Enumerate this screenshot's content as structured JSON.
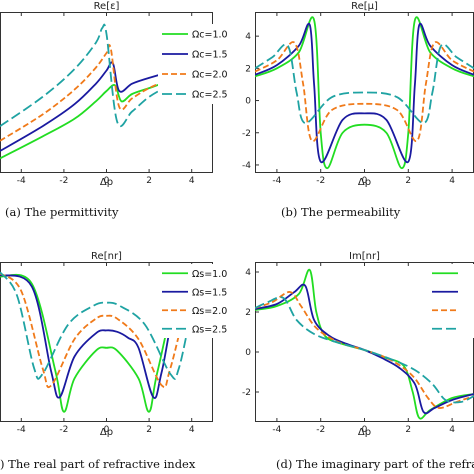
{
  "chart_data": [
    {
      "type": "line",
      "title": "Re[ε]",
      "xlabel": "Δp",
      "caption": "(a) The permittivity",
      "xlim": [
        -5,
        5
      ],
      "x_ticks": [
        "-4",
        "-2",
        "0",
        "2",
        "4"
      ],
      "y_ticks": [],
      "legend_position": "top-right",
      "series": [
        {
          "name": "Ωc=1.0",
          "color": "#22dd22",
          "dash": "solid",
          "x": [
            -5,
            -3,
            -1.5,
            -0.5,
            0,
            0.4,
            0.7,
            1.2,
            2,
            3,
            4,
            5
          ],
          "y": [
            0.05,
            0.2,
            0.32,
            0.44,
            0.51,
            0.55,
            0.44,
            0.49,
            0.53,
            0.58,
            0.62,
            0.66
          ]
        },
        {
          "name": "Ωc=1.5",
          "color": "#1a1aa0",
          "dash": "solid",
          "x": [
            -5,
            -3,
            -1.5,
            -0.5,
            0,
            0.3,
            0.6,
            1.2,
            2,
            3,
            4,
            5
          ],
          "y": [
            0.1,
            0.27,
            0.42,
            0.56,
            0.65,
            0.7,
            0.51,
            0.56,
            0.6,
            0.64,
            0.67,
            0.7
          ]
        },
        {
          "name": "Ωc=2.0",
          "color": "#f07a1a",
          "dash": "6,3",
          "x": [
            -5,
            -3,
            -1.5,
            -0.5,
            0,
            0.2,
            0.6,
            1.2,
            2,
            3,
            4,
            5
          ],
          "y": [
            0.17,
            0.35,
            0.52,
            0.67,
            0.77,
            0.8,
            0.4,
            0.46,
            0.53,
            0.59,
            0.63,
            0.67
          ]
        },
        {
          "name": "Ωc=2.5",
          "color": "#1fa3a3",
          "dash": "10,4",
          "x": [
            -5,
            -3,
            -1.5,
            -0.5,
            -0.2,
            0,
            0.5,
            1.2,
            2,
            3,
            4,
            5
          ],
          "y": [
            0.27,
            0.47,
            0.66,
            0.84,
            0.94,
            0.9,
            0.3,
            0.37,
            0.47,
            0.55,
            0.6,
            0.64
          ]
        }
      ]
    },
    {
      "type": "line",
      "title": "Re[μ]",
      "xlabel": "Δp",
      "caption": "(b) The permeability",
      "xlim": [
        -5,
        5
      ],
      "ylim": [
        -4.5,
        5.5
      ],
      "x_ticks": [
        "-4",
        "-2",
        "0",
        "2",
        "4"
      ],
      "y_ticks": [
        "4",
        "2",
        "0",
        "-2",
        "-4"
      ],
      "series": [
        {
          "name": "",
          "color": "#22dd22",
          "dash": "solid",
          "x": [
            -5,
            -4,
            -3,
            -2.3,
            -2,
            -1.7,
            -1,
            0,
            1,
            1.7,
            2,
            2.3,
            3,
            4,
            5
          ],
          "y": [
            1.5,
            2.0,
            3.0,
            5.0,
            -2,
            -4.2,
            -2,
            -1.5,
            -2,
            -4.2,
            -2,
            5.0,
            3.0,
            2.0,
            1.5
          ]
        },
        {
          "name": "",
          "color": "#1a1aa0",
          "dash": "solid",
          "x": [
            -5,
            -4,
            -3,
            -2.5,
            -2.3,
            -2,
            -1,
            0,
            1,
            2,
            2.3,
            2.5,
            3,
            4,
            5
          ],
          "y": [
            1.6,
            2.2,
            3.4,
            4.7,
            1,
            -3.8,
            -1.2,
            -0.8,
            -1.2,
            -3.8,
            1,
            4.7,
            3.4,
            2.2,
            1.6
          ]
        },
        {
          "name": "",
          "color": "#f07a1a",
          "dash": "6,3",
          "x": [
            -5,
            -4,
            -3.2,
            -2.8,
            -2.4,
            -1.5,
            0,
            1.5,
            2.4,
            2.8,
            3.2,
            4,
            5
          ],
          "y": [
            1.8,
            2.5,
            3.6,
            1,
            -2.5,
            -0.6,
            -0.2,
            -0.6,
            -2.5,
            1,
            3.6,
            2.5,
            1.8
          ]
        },
        {
          "name": "",
          "color": "#1fa3a3",
          "dash": "10,4",
          "x": [
            -5,
            -4.2,
            -3.5,
            -3.1,
            -2.7,
            -1.5,
            0,
            1.5,
            2.7,
            3.1,
            3.5,
            4.2,
            5
          ],
          "y": [
            2.0,
            2.7,
            3.4,
            0.5,
            -1.4,
            0.2,
            0.5,
            0.2,
            -1.4,
            0.5,
            3.4,
            2.7,
            2.0
          ]
        }
      ]
    },
    {
      "type": "line",
      "title": "Re[nr]",
      "xlabel": "Δp",
      "caption": ") The real part of refractive index",
      "xlim": [
        -5,
        5
      ],
      "x_ticks": [
        "-4",
        "-2",
        "0",
        "2",
        "4"
      ],
      "y_ticks": [],
      "legend_position": "top-right",
      "series": [
        {
          "name": "Ωs=1.0",
          "color": "#22dd22",
          "dash": "solid",
          "x": [
            -5,
            -3.5,
            -2.4,
            -2,
            -1.5,
            -0.5,
            0,
            0.5,
            1.5,
            2,
            2.4,
            3.5,
            5
          ],
          "y": [
            0.95,
            0.9,
            0.3,
            0.02,
            0.25,
            0.44,
            0.46,
            0.44,
            0.25,
            0.02,
            0.3,
            0.9,
            0.95
          ]
        },
        {
          "name": "Ωs=1.5",
          "color": "#1a1aa0",
          "dash": "solid",
          "x": [
            -5,
            -3.5,
            -2.6,
            -2.2,
            -1.5,
            -0.5,
            0,
            0.5,
            1,
            1.5,
            2.2,
            2.6,
            3.5,
            5
          ],
          "y": [
            0.96,
            0.88,
            0.3,
            0.12,
            0.4,
            0.56,
            0.58,
            0.57,
            0.53,
            0.46,
            0.12,
            0.3,
            0.88,
            0.96
          ]
        },
        {
          "name": "Ωs=2.0",
          "color": "#f07a1a",
          "dash": "6,3",
          "x": [
            -5,
            -4,
            -3,
            -2.6,
            -1.5,
            -0.5,
            0,
            0.5,
            1.5,
            2.6,
            3,
            4,
            5
          ],
          "y": [
            0.97,
            0.85,
            0.32,
            0.2,
            0.52,
            0.66,
            0.68,
            0.66,
            0.52,
            0.2,
            0.32,
            0.85,
            0.97
          ]
        },
        {
          "name": "Ωs=2.5",
          "color": "#1fa3a3",
          "dash": "10,4",
          "x": [
            -5,
            -4.2,
            -3.4,
            -3,
            -1.8,
            -0.6,
            0,
            0.6,
            1.8,
            3,
            3.4,
            4.2,
            5
          ],
          "y": [
            0.98,
            0.82,
            0.32,
            0.28,
            0.62,
            0.75,
            0.77,
            0.75,
            0.62,
            0.28,
            0.32,
            0.82,
            0.98
          ]
        }
      ]
    },
    {
      "type": "line",
      "title": "Im[nr]",
      "xlabel": "Δp",
      "caption": "(d) The imaginary part of the refractive",
      "xlim": [
        -5,
        5
      ],
      "ylim": [
        -3.5,
        4.5
      ],
      "x_ticks": [
        "-4",
        "-2",
        "0",
        "2",
        "4"
      ],
      "y_ticks": [
        "4",
        "2",
        "0",
        "-2"
      ],
      "legend_position": "top-right",
      "series": [
        {
          "name": "",
          "color": "#22dd22",
          "dash": "solid",
          "x": [
            -5,
            -4,
            -3,
            -2.5,
            -2.2,
            -1.8,
            -1,
            0,
            1,
            1.8,
            2.2,
            2.5,
            3,
            4,
            5
          ],
          "y": [
            2.1,
            2.3,
            2.9,
            4.1,
            2.0,
            0.8,
            0.4,
            0.1,
            -0.3,
            -0.7,
            -2.0,
            -3.3,
            -2.9,
            -2.3,
            -2.1
          ]
        },
        {
          "name": "",
          "color": "#1a1aa0",
          "dash": "solid",
          "x": [
            -5,
            -4,
            -3.2,
            -2.7,
            -2.3,
            -1.6,
            -0.8,
            0,
            0.8,
            1.6,
            2.3,
            2.7,
            3.2,
            4,
            5
          ],
          "y": [
            2.15,
            2.4,
            3.0,
            3.3,
            1.6,
            0.8,
            0.4,
            0.1,
            -0.3,
            -0.8,
            -1.6,
            -3.0,
            -2.8,
            -2.4,
            -2.1
          ]
        },
        {
          "name": "",
          "color": "#f07a1a",
          "dash": "6,3",
          "x": [
            -5,
            -4.2,
            -3.4,
            -2.9,
            -2.2,
            -1.2,
            0,
            1.2,
            2.2,
            2.9,
            3.4,
            4.2,
            5
          ],
          "y": [
            2.2,
            2.5,
            3.0,
            2.3,
            1.2,
            0.5,
            0.1,
            -0.4,
            -1.2,
            -2.3,
            -2.8,
            -2.5,
            -2.2
          ]
        },
        {
          "name": "",
          "color": "#1fa3a3",
          "dash": "10,4",
          "x": [
            -5,
            -4.4,
            -3.7,
            -3.1,
            -2.3,
            -1.3,
            0,
            1.3,
            2.3,
            3.1,
            3.7,
            4.4,
            5
          ],
          "y": [
            2.2,
            2.5,
            2.7,
            1.6,
            0.9,
            0.5,
            0.1,
            -0.4,
            -0.9,
            -1.6,
            -2.4,
            -2.5,
            -2.2
          ]
        }
      ]
    }
  ]
}
